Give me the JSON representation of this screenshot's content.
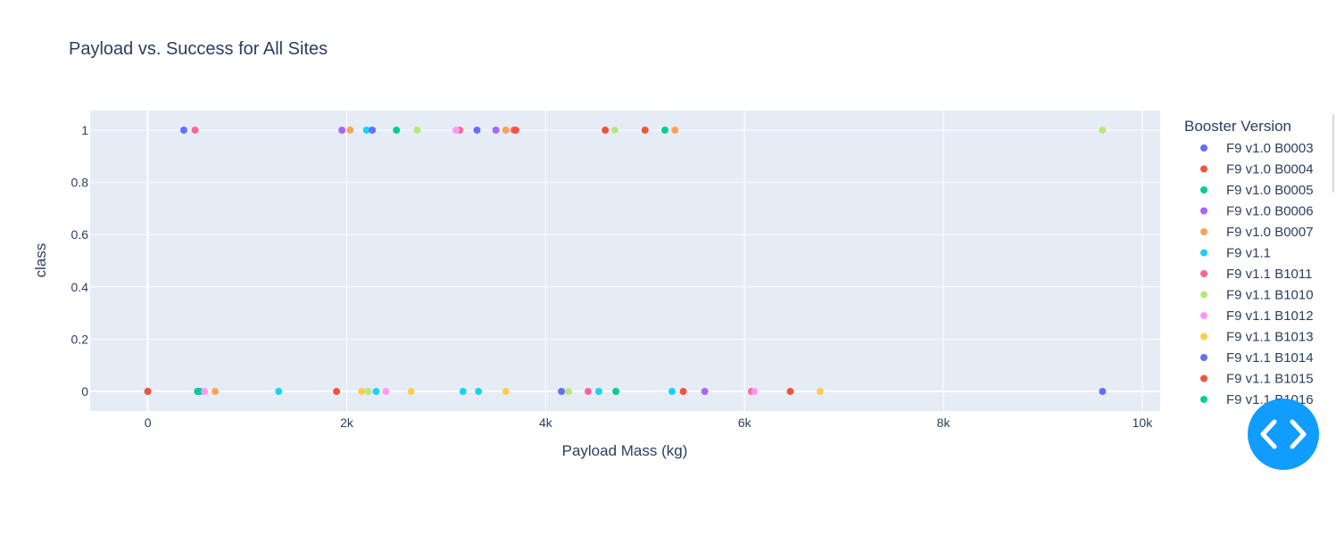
{
  "chart_data": {
    "type": "scatter",
    "title": "Payload vs. Success for All Sites",
    "xlabel": "Payload Mass (kg)",
    "ylabel": "class",
    "xlim": [
      -580,
      10180
    ],
    "ylim": [
      -0.075,
      1.075
    ],
    "x_ticks": [
      0,
      2000,
      4000,
      6000,
      8000,
      10000
    ],
    "x_tick_labels": [
      "0",
      "2k",
      "4k",
      "6k",
      "8k",
      "10k"
    ],
    "y_ticks": [
      0,
      0.2,
      0.4,
      0.6,
      0.8,
      1
    ],
    "y_tick_labels": [
      "0",
      "0.2",
      "0.4",
      "0.6",
      "0.8",
      "1"
    ],
    "grid": true,
    "plot_background": "#e5ecf6",
    "legend": {
      "title": "Booster Version",
      "placement": "right"
    },
    "series": [
      {
        "name": "F9 v1.0  B0003",
        "color": "#636efa",
        "points": [
          [
            0,
            0
          ]
        ]
      },
      {
        "name": "F9 v1.0  B0004",
        "color": "#EF553B",
        "points": [
          [
            0,
            0
          ]
        ]
      },
      {
        "name": "F9 v1.0  B0005",
        "color": "#00cc96",
        "points": [
          [
            525,
            0
          ]
        ]
      },
      {
        "name": "F9 v1.0  B0006",
        "color": "#ab63fa",
        "points": [
          [
            500,
            0
          ],
          [
            1952,
            1
          ],
          [
            3500,
            1
          ],
          [
            5600,
            0
          ]
        ]
      },
      {
        "name": "F9 v1.0  B0007",
        "color": "#FFA15A",
        "points": [
          [
            677,
            0
          ],
          [
            2034,
            1
          ],
          [
            3600,
            1
          ],
          [
            5300,
            1
          ]
        ]
      },
      {
        "name": "F9 v1.1",
        "color": "#19d3f3",
        "points": [
          [
            1316,
            0
          ],
          [
            2200,
            1
          ],
          [
            2296,
            0
          ],
          [
            3170,
            0
          ],
          [
            3325,
            0
          ],
          [
            4535,
            0
          ],
          [
            5271,
            0
          ]
        ]
      },
      {
        "name": "F9 v1.1 B1011",
        "color": "#FF6692",
        "points": [
          [
            475,
            1
          ],
          [
            3136,
            1
          ],
          [
            3681,
            1
          ],
          [
            4428,
            0
          ],
          [
            6070,
            0
          ]
        ]
      },
      {
        "name": "F9 v1.1 B1010",
        "color": "#B6E880",
        "points": [
          [
            2216,
            0
          ],
          [
            2708,
            1
          ],
          [
            4230,
            0
          ],
          [
            4696,
            1
          ],
          [
            9600,
            1
          ]
        ]
      },
      {
        "name": "F9 v1.1 B1012",
        "color": "#FF97FF",
        "points": [
          [
            570,
            0
          ],
          [
            2395,
            0
          ],
          [
            3100,
            1
          ],
          [
            6100,
            0
          ]
        ]
      },
      {
        "name": "F9 v1.1 B1013",
        "color": "#FECB52",
        "points": [
          [
            2150,
            0
          ],
          [
            2647,
            0
          ],
          [
            3600,
            0
          ],
          [
            6761,
            0
          ]
        ]
      },
      {
        "name": "F9 v1.1 B1014",
        "color": "#636efa",
        "points": [
          [
            362,
            1
          ],
          [
            2257,
            1
          ],
          [
            3310,
            1
          ],
          [
            4159,
            0
          ],
          [
            9600,
            0
          ]
        ]
      },
      {
        "name": "F9 v1.1 B1015",
        "color": "#EF553B",
        "points": [
          [
            1898,
            0
          ],
          [
            3700,
            1
          ],
          [
            4600,
            1
          ],
          [
            5000,
            1
          ],
          [
            5384,
            0
          ],
          [
            6460,
            0
          ]
        ]
      },
      {
        "name": "F9 v1.1 B1016",
        "color": "#00cc96",
        "points": [
          [
            2500,
            1
          ],
          [
            4707,
            0
          ],
          [
            5200,
            1
          ],
          [
            500,
            0
          ]
        ]
      }
    ]
  },
  "code_button": {
    "icon": "code-brackets-icon",
    "color": "#119dff"
  }
}
